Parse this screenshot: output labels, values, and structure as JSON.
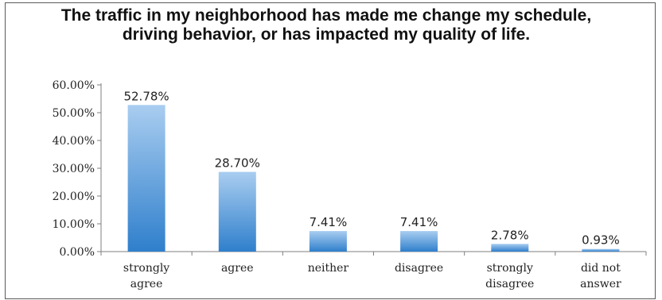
{
  "chart_data": {
    "type": "bar",
    "title": "The traffic in my neighborhood has made me change my schedule, driving behavior, or has impacted my quality of life.",
    "categories": [
      [
        "strongly",
        "agree"
      ],
      [
        "agree"
      ],
      [
        "neither"
      ],
      [
        "disagree"
      ],
      [
        "strongly",
        "disagree"
      ],
      [
        "did not",
        "answer"
      ]
    ],
    "values": [
      52.78,
      28.7,
      7.41,
      7.41,
      2.78,
      0.93
    ],
    "data_labels": [
      "52.78%",
      "28.70%",
      "7.41%",
      "7.41%",
      "2.78%",
      "0.93%"
    ],
    "ylim": [
      0,
      60
    ],
    "yticks": [
      0,
      10,
      20,
      30,
      40,
      50,
      60
    ],
    "ytick_labels": [
      "0.00%",
      "10.00%",
      "20.00%",
      "30.00%",
      "40.00%",
      "50.00%",
      "60.00%"
    ],
    "xlabel": "",
    "ylabel": "",
    "grid": false,
    "legend": "none",
    "colors": {
      "bar_top": "#a9cdf0",
      "bar_bottom": "#2f7fcc",
      "axis": "#7f7f7f"
    }
  }
}
